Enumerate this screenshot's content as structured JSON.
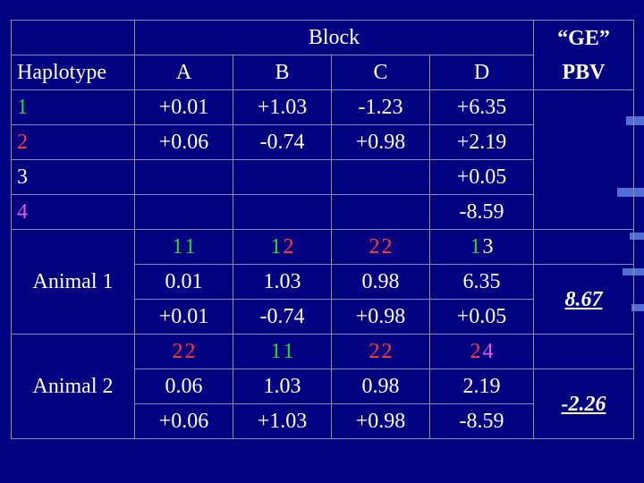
{
  "header": {
    "block_label": "Block",
    "ge_label": "“GE”",
    "pbv_label": "PBV",
    "haplotype_label": "Haplotype",
    "blocks": [
      "A",
      "B",
      "C",
      "D"
    ]
  },
  "haplotypes": [
    {
      "id": "1",
      "color": "#2fd52f",
      "values": [
        "+0.01",
        "+1.03",
        "-1.23",
        "+6.35"
      ]
    },
    {
      "id": "2",
      "color": "#ff3b3b",
      "values": [
        "+0.06",
        "-0.74",
        "+0.98",
        "+2.19"
      ]
    },
    {
      "id": "3",
      "color": "#ffffff",
      "values": [
        "",
        "",
        "",
        "+0.05"
      ]
    },
    {
      "id": "4",
      "color": "#e05ce0",
      "values": [
        "",
        "",
        "",
        "-8.59"
      ]
    }
  ],
  "animals": [
    {
      "label": "Animal 1",
      "pairs": [
        [
          "1",
          "1"
        ],
        [
          "1",
          "2"
        ],
        [
          "2",
          "2"
        ],
        [
          "1",
          "3"
        ]
      ],
      "first_values": [
        "0.01",
        "1.03",
        "0.98",
        "6.35"
      ],
      "second_values": [
        "+0.01",
        "-0.74",
        "+0.98",
        "+0.05"
      ],
      "pbv": "8.67"
    },
    {
      "label": "Animal 2",
      "pairs": [
        [
          "2",
          "2"
        ],
        [
          "1",
          "1"
        ],
        [
          "2",
          "2"
        ],
        [
          "2",
          "4"
        ]
      ],
      "first_values": [
        "0.06",
        "1.03",
        "0.98",
        "2.19"
      ],
      "second_values": [
        "+0.06",
        "+1.03",
        "+0.98",
        "-8.59"
      ],
      "pbv": "-2.26"
    }
  ],
  "colors": {
    "background": "#000080",
    "haplotype_1": "#2fd52f",
    "haplotype_2": "#ff3b3b",
    "haplotype_3": "#ffffff",
    "haplotype_4": "#e05ce0"
  }
}
